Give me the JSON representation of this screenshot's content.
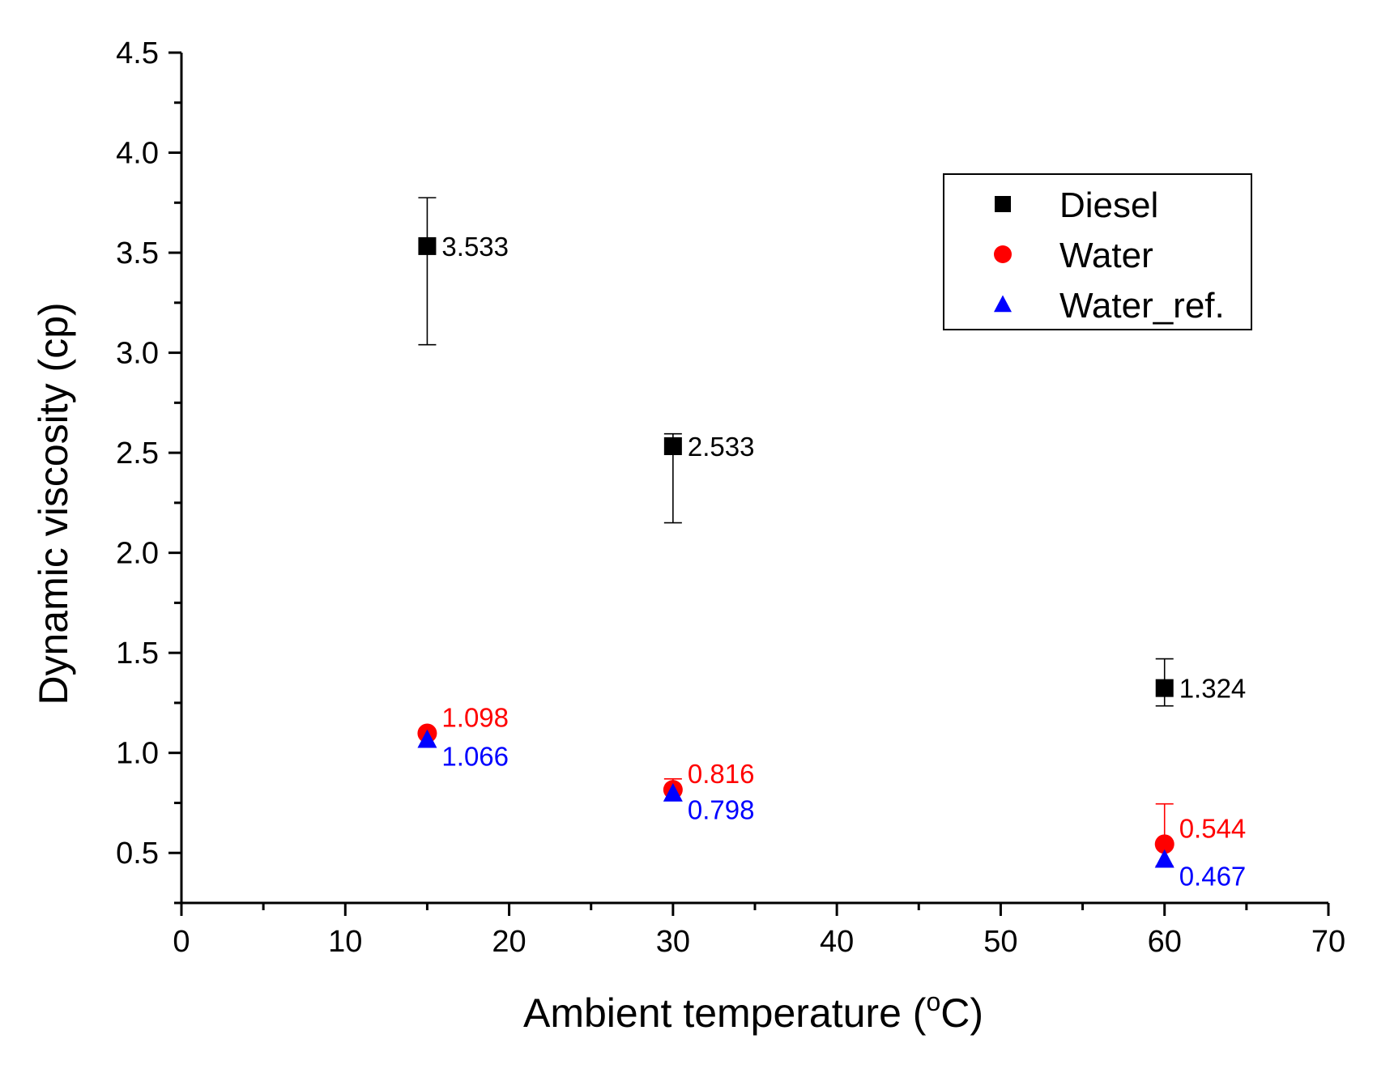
{
  "chart_data": {
    "type": "scatter",
    "title": "",
    "xlabel": "Ambient temperature (",
    "xlabel_sup": "o",
    "xlabel_tail": "C)",
    "ylabel": "Dynamic viscosity (cp)",
    "xlim": [
      0,
      70
    ],
    "ylim": [
      0.25,
      4.5
    ],
    "x_ticks": [
      0,
      10,
      20,
      30,
      40,
      50,
      60,
      70
    ],
    "x_tick_labels": [
      "0",
      "10",
      "20",
      "30",
      "40",
      "50",
      "60",
      "70"
    ],
    "y_ticks": [
      0.5,
      1.0,
      1.5,
      2.0,
      2.5,
      3.0,
      3.5,
      4.0,
      4.5
    ],
    "y_tick_labels": [
      "0.5",
      "1.0",
      "1.5",
      "2.0",
      "2.5",
      "3.0",
      "3.5",
      "4.0",
      "4.5"
    ],
    "grid": false,
    "legend_position": "top-right",
    "series": [
      {
        "name": "Diesel",
        "marker": "square",
        "color": "#000000",
        "x": [
          15,
          30,
          60
        ],
        "y": [
          3.533,
          2.533,
          1.324
        ],
        "labels": [
          "3.533",
          "2.533",
          "1.324"
        ],
        "error_low": [
          3.04,
          2.15,
          1.235
        ],
        "error_high": [
          3.775,
          2.595,
          1.47
        ]
      },
      {
        "name": "Water",
        "marker": "circle",
        "color": "#ff0000",
        "x": [
          15,
          30,
          60
        ],
        "y": [
          1.098,
          0.816,
          0.544
        ],
        "labels": [
          "1.098",
          "0.816",
          "0.544"
        ],
        "error_low": [
          null,
          null,
          0.435
        ],
        "error_high": [
          null,
          0.87,
          0.745
        ]
      },
      {
        "name": "Water_ref.",
        "marker": "triangle",
        "color": "#0000ff",
        "x": [
          15,
          30,
          60
        ],
        "y": [
          1.066,
          0.798,
          0.467
        ],
        "labels": [
          "1.066",
          "0.798",
          "0.467"
        ],
        "error_low": [
          null,
          null,
          null
        ],
        "error_high": [
          null,
          null,
          null
        ]
      }
    ]
  }
}
